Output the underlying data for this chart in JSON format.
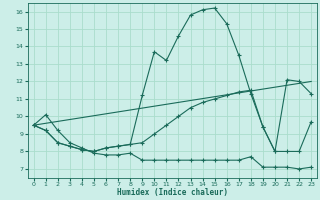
{
  "xlabel": "Humidex (Indice chaleur)",
  "bg_color": "#cceee8",
  "grid_color": "#aaddcc",
  "line_color": "#1a6b5a",
  "xlim": [
    -0.5,
    23.5
  ],
  "ylim": [
    6.5,
    16.5
  ],
  "yticks": [
    7,
    8,
    9,
    10,
    11,
    12,
    13,
    14,
    15,
    16
  ],
  "xticks": [
    0,
    1,
    2,
    3,
    4,
    5,
    6,
    7,
    8,
    9,
    10,
    11,
    12,
    13,
    14,
    15,
    16,
    17,
    18,
    19,
    20,
    21,
    22,
    23
  ],
  "line1_x": [
    0,
    1,
    2,
    3,
    4,
    5,
    6,
    7,
    8,
    9,
    10,
    11,
    12,
    13,
    14,
    15,
    16,
    17,
    18,
    19,
    20,
    21,
    22,
    23
  ],
  "line1_y": [
    9.5,
    10.1,
    9.2,
    8.5,
    8.2,
    7.9,
    7.8,
    7.8,
    7.9,
    7.5,
    7.5,
    7.5,
    7.5,
    7.5,
    7.5,
    7.5,
    7.5,
    7.5,
    7.7,
    7.1,
    7.1,
    7.1,
    7.0,
    7.1
  ],
  "line2_x": [
    0,
    1,
    2,
    3,
    4,
    5,
    6,
    7,
    8,
    9,
    10,
    11,
    12,
    13,
    14,
    15,
    16,
    17,
    18,
    19,
    20,
    21,
    22,
    23
  ],
  "line2_y": [
    9.5,
    9.2,
    8.5,
    8.3,
    8.1,
    8.0,
    8.2,
    8.3,
    8.4,
    11.2,
    13.7,
    13.2,
    14.6,
    15.8,
    16.1,
    16.2,
    15.3,
    13.5,
    11.3,
    9.4,
    8.0,
    8.0,
    8.0,
    9.7
  ],
  "line3_x": [
    0,
    23
  ],
  "line3_y": [
    9.5,
    12.0
  ],
  "line4_x": [
    0,
    1,
    2,
    3,
    4,
    5,
    6,
    7,
    8,
    9,
    10,
    11,
    12,
    13,
    14,
    15,
    16,
    17,
    18,
    19,
    20,
    21,
    22,
    23
  ],
  "line4_y": [
    9.5,
    9.2,
    8.5,
    8.3,
    8.1,
    8.0,
    8.2,
    8.3,
    8.4,
    8.5,
    9.0,
    9.5,
    10.0,
    10.5,
    10.8,
    11.0,
    11.2,
    11.4,
    11.5,
    9.4,
    8.0,
    12.1,
    12.0,
    11.3
  ]
}
